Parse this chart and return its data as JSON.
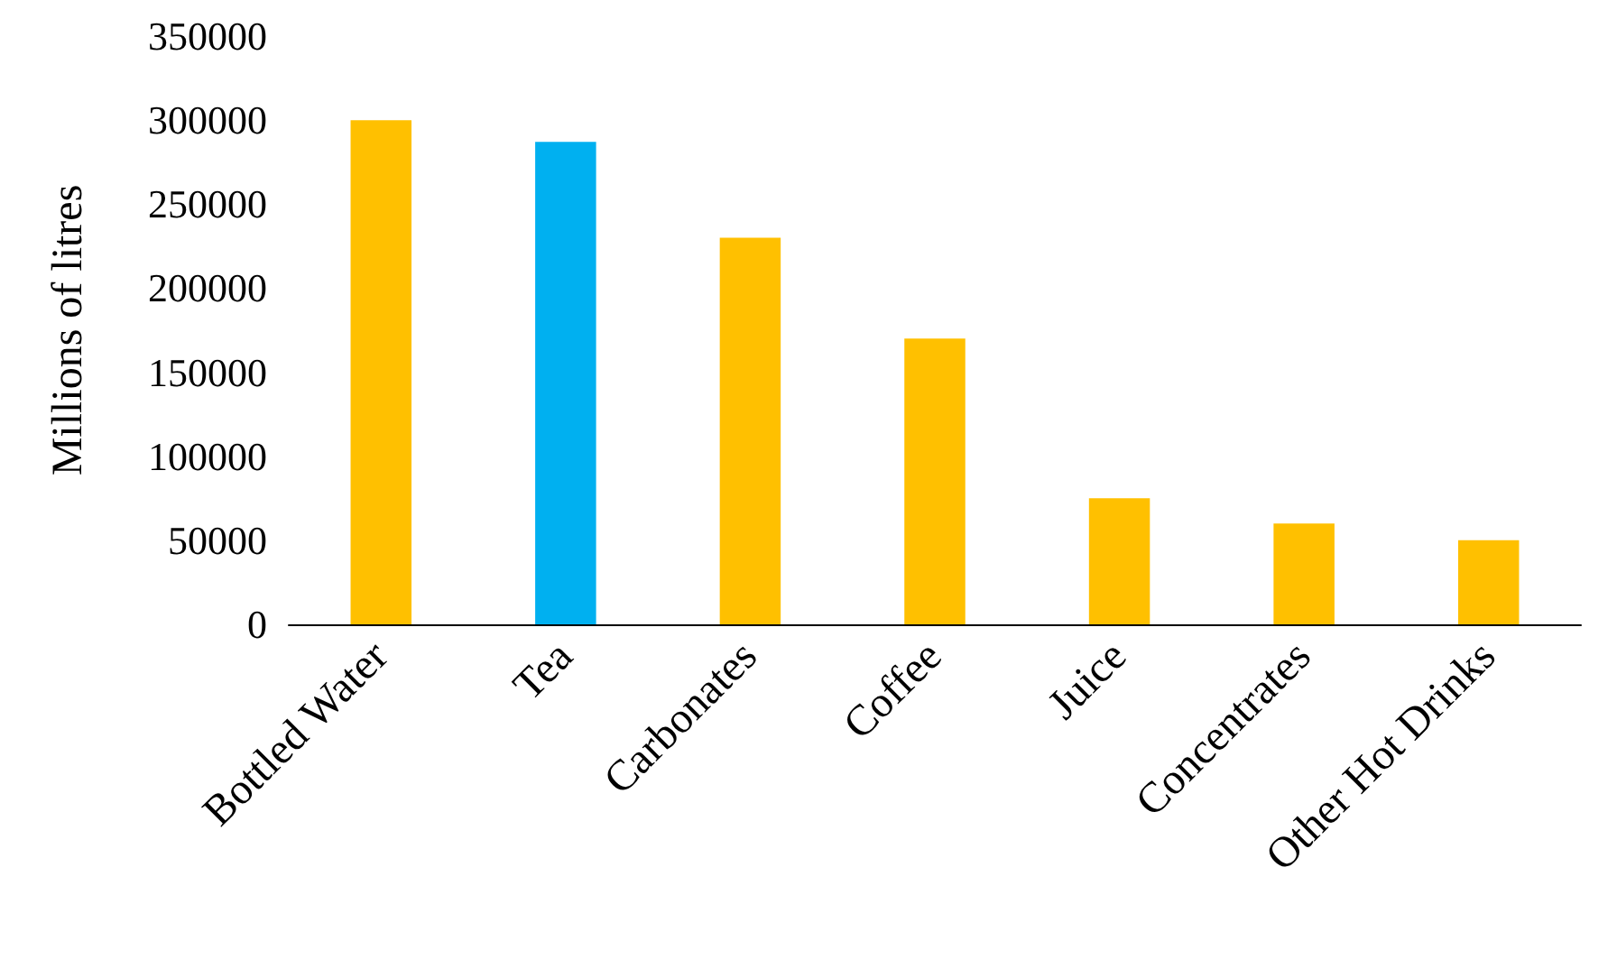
{
  "chart_data": {
    "type": "bar",
    "ylabel": "Millions of litres",
    "categories": [
      "Bottled Water",
      "Tea",
      "Carbonates",
      "Coffee",
      "Juice",
      "Concentrates",
      "Other Hot Drinks"
    ],
    "values": [
      300000,
      287000,
      230000,
      170000,
      75000,
      60000,
      50000
    ],
    "colors": [
      "#ffc000",
      "#00b0f0",
      "#ffc000",
      "#ffc000",
      "#ffc000",
      "#ffc000",
      "#ffc000"
    ],
    "ylim": [
      0,
      350000
    ],
    "yticks": [
      0,
      50000,
      100000,
      150000,
      200000,
      250000,
      300000,
      350000
    ],
    "grid": false
  }
}
